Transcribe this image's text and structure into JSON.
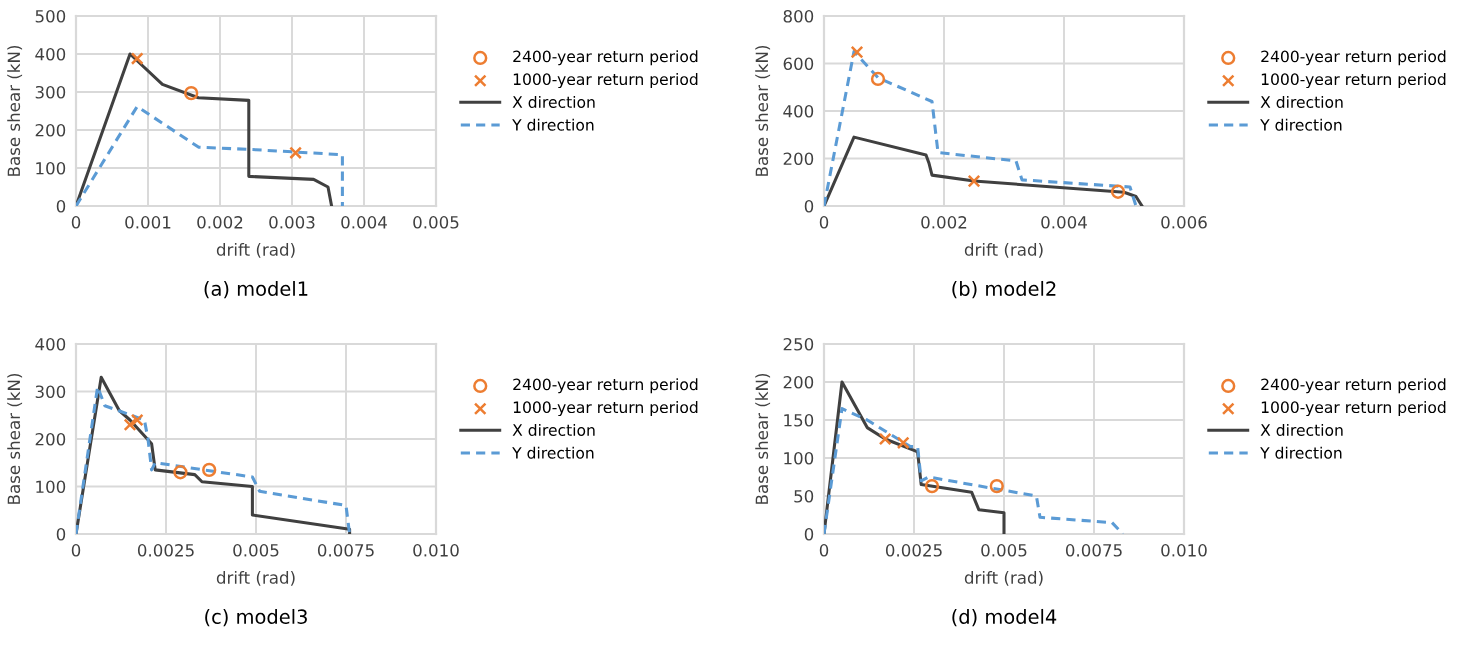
{
  "chart_data": [
    {
      "type": "line",
      "title": "(a) model1",
      "xlabel": "drift (rad)",
      "ylabel": "Base shear (kN)",
      "xlim": [
        0,
        0.005
      ],
      "xticks": [
        0,
        0.001,
        0.002,
        0.003,
        0.004,
        0.005
      ],
      "ylim": [
        0,
        500
      ],
      "yticks": [
        0,
        100,
        200,
        300,
        400,
        500
      ],
      "grid": true,
      "legend": "right",
      "series": [
        {
          "name": "2400-year return period",
          "type": "scatter",
          "marker": "circle",
          "color": "#ed7d31",
          "x": [
            0.0016
          ],
          "values": [
            297
          ]
        },
        {
          "name": "1000-year return period",
          "type": "scatter",
          "marker": "cross",
          "color": "#ed7d31",
          "x": [
            0.00085,
            0.00305
          ],
          "values": [
            388,
            140
          ]
        },
        {
          "name": "X direction",
          "line_style": "solid",
          "color": "#404040",
          "x": [
            0,
            0.00075,
            0.0012,
            0.0017,
            0.0024,
            0.0024,
            0.0033,
            0.0035,
            0.00355
          ],
          "values": [
            0,
            400,
            320,
            285,
            278,
            78,
            70,
            50,
            0
          ]
        },
        {
          "name": "Y direction",
          "line_style": "dashed",
          "color": "#5b9bd5",
          "x": [
            0,
            0.00085,
            0.0017,
            0.0025,
            0.0037,
            0.0037
          ],
          "values": [
            0,
            262,
            155,
            148,
            135,
            0
          ]
        }
      ]
    },
    {
      "type": "line",
      "title": "(b) model2",
      "xlabel": "drift (rad)",
      "ylabel": "Base shear (kN)",
      "xlim": [
        0,
        0.006
      ],
      "xticks": [
        0,
        0.002,
        0.004,
        0.006
      ],
      "ylim": [
        0,
        800
      ],
      "yticks": [
        0,
        200,
        400,
        600,
        800
      ],
      "grid": true,
      "legend": "right",
      "series": [
        {
          "name": "2400-year return period",
          "type": "scatter",
          "marker": "circle",
          "color": "#ed7d31",
          "x": [
            0.0009,
            0.0049
          ],
          "values": [
            535,
            60
          ]
        },
        {
          "name": "1000-year return period",
          "type": "scatter",
          "marker": "cross",
          "color": "#ed7d31",
          "x": [
            0.00055,
            0.0025
          ],
          "values": [
            648,
            105
          ]
        },
        {
          "name": "X direction",
          "line_style": "solid",
          "color": "#404040",
          "x": [
            0,
            0.0005,
            0.0017,
            0.00175,
            0.0018,
            0.0025,
            0.005,
            0.0052,
            0.0053
          ],
          "values": [
            0,
            290,
            215,
            180,
            130,
            105,
            58,
            40,
            0
          ]
        },
        {
          "name": "Y direction",
          "line_style": "dashed",
          "color": "#5b9bd5",
          "x": [
            0,
            0.0005,
            0.0009,
            0.0018,
            0.0019,
            0.0032,
            0.0033,
            0.0051,
            0.0052
          ],
          "values": [
            0,
            650,
            540,
            440,
            225,
            190,
            110,
            80,
            0
          ]
        }
      ]
    },
    {
      "type": "line",
      "title": "(c) model3",
      "xlabel": "drift (rad)",
      "ylabel": "Base shear (kN)",
      "xlim": [
        0,
        0.01
      ],
      "xticks": [
        0,
        {
          "value": 0.0025,
          "label": "0.0025"
        },
        {
          "value": 0.005,
          "label": "0.005"
        },
        {
          "value": 0.0075,
          "label": "0.0075"
        },
        {
          "value": 0.01,
          "label": "0.010"
        }
      ],
      "ylim": [
        0,
        400
      ],
      "yticks": [
        0,
        100,
        200,
        300,
        400
      ],
      "grid": true,
      "legend": "right",
      "series": [
        {
          "name": "2400-year return period",
          "type": "scatter",
          "marker": "circle",
          "color": "#ed7d31",
          "x": [
            0.0029,
            0.0037
          ],
          "values": [
            130,
            135
          ]
        },
        {
          "name": "1000-year return period",
          "type": "scatter",
          "marker": "cross",
          "color": "#ed7d31",
          "x": [
            0.0015,
            0.0017
          ],
          "values": [
            230,
            240
          ]
        },
        {
          "name": "X direction",
          "line_style": "solid",
          "color": "#404040",
          "x": [
            0,
            0.0007,
            0.0012,
            0.0015,
            0.0021,
            0.0022,
            0.0033,
            0.0035,
            0.0049,
            0.0049,
            0.0076,
            0.0076
          ],
          "values": [
            0,
            330,
            260,
            240,
            190,
            135,
            125,
            110,
            100,
            40,
            10,
            0
          ]
        },
        {
          "name": "Y direction",
          "line_style": "dashed",
          "color": "#5b9bd5",
          "x": [
            0,
            0.0006,
            0.0008,
            0.0019,
            0.002,
            0.0021,
            0.0022,
            0.0049,
            0.0051,
            0.0075,
            0.0076
          ],
          "values": [
            0,
            310,
            270,
            240,
            200,
            135,
            150,
            120,
            90,
            60,
            0
          ]
        }
      ]
    },
    {
      "type": "line",
      "title": "(d) model4",
      "xlabel": "drift (rad)",
      "ylabel": "Base shear (kN)",
      "xlim": [
        0,
        0.01
      ],
      "xticks": [
        0,
        {
          "value": 0.0025,
          "label": "0.0025"
        },
        {
          "value": 0.005,
          "label": "0.005"
        },
        {
          "value": 0.0075,
          "label": "0.0075"
        },
        {
          "value": 0.01,
          "label": "0.010"
        }
      ],
      "ylim": [
        0,
        250
      ],
      "yticks": [
        0,
        50,
        100,
        150,
        200,
        250
      ],
      "grid": true,
      "legend": "right",
      "series": [
        {
          "name": "2400-year return period",
          "type": "scatter",
          "marker": "circle",
          "color": "#ed7d31",
          "x": [
            0.003,
            0.0048
          ],
          "values": [
            63,
            63
          ]
        },
        {
          "name": "1000-year return period",
          "type": "scatter",
          "marker": "cross",
          "color": "#ed7d31",
          "x": [
            0.0017,
            0.0022
          ],
          "values": [
            125,
            120
          ]
        },
        {
          "name": "X direction",
          "line_style": "solid",
          "color": "#404040",
          "x": [
            0,
            0.0005,
            0.0012,
            0.0017,
            0.0025,
            0.0026,
            0.0027,
            0.0041,
            0.0043,
            0.005,
            0.005
          ],
          "values": [
            0,
            200,
            140,
            125,
            110,
            108,
            65,
            55,
            32,
            28,
            0
          ]
        },
        {
          "name": "Y direction",
          "line_style": "dashed",
          "color": "#5b9bd5",
          "x": [
            0,
            0.0005,
            0.0012,
            0.0024,
            0.0026,
            0.0027,
            0.0029,
            0.0059,
            0.006,
            0.008,
            0.0083
          ],
          "values": [
            0,
            165,
            150,
            115,
            115,
            70,
            75,
            50,
            22,
            15,
            0
          ]
        }
      ]
    }
  ]
}
